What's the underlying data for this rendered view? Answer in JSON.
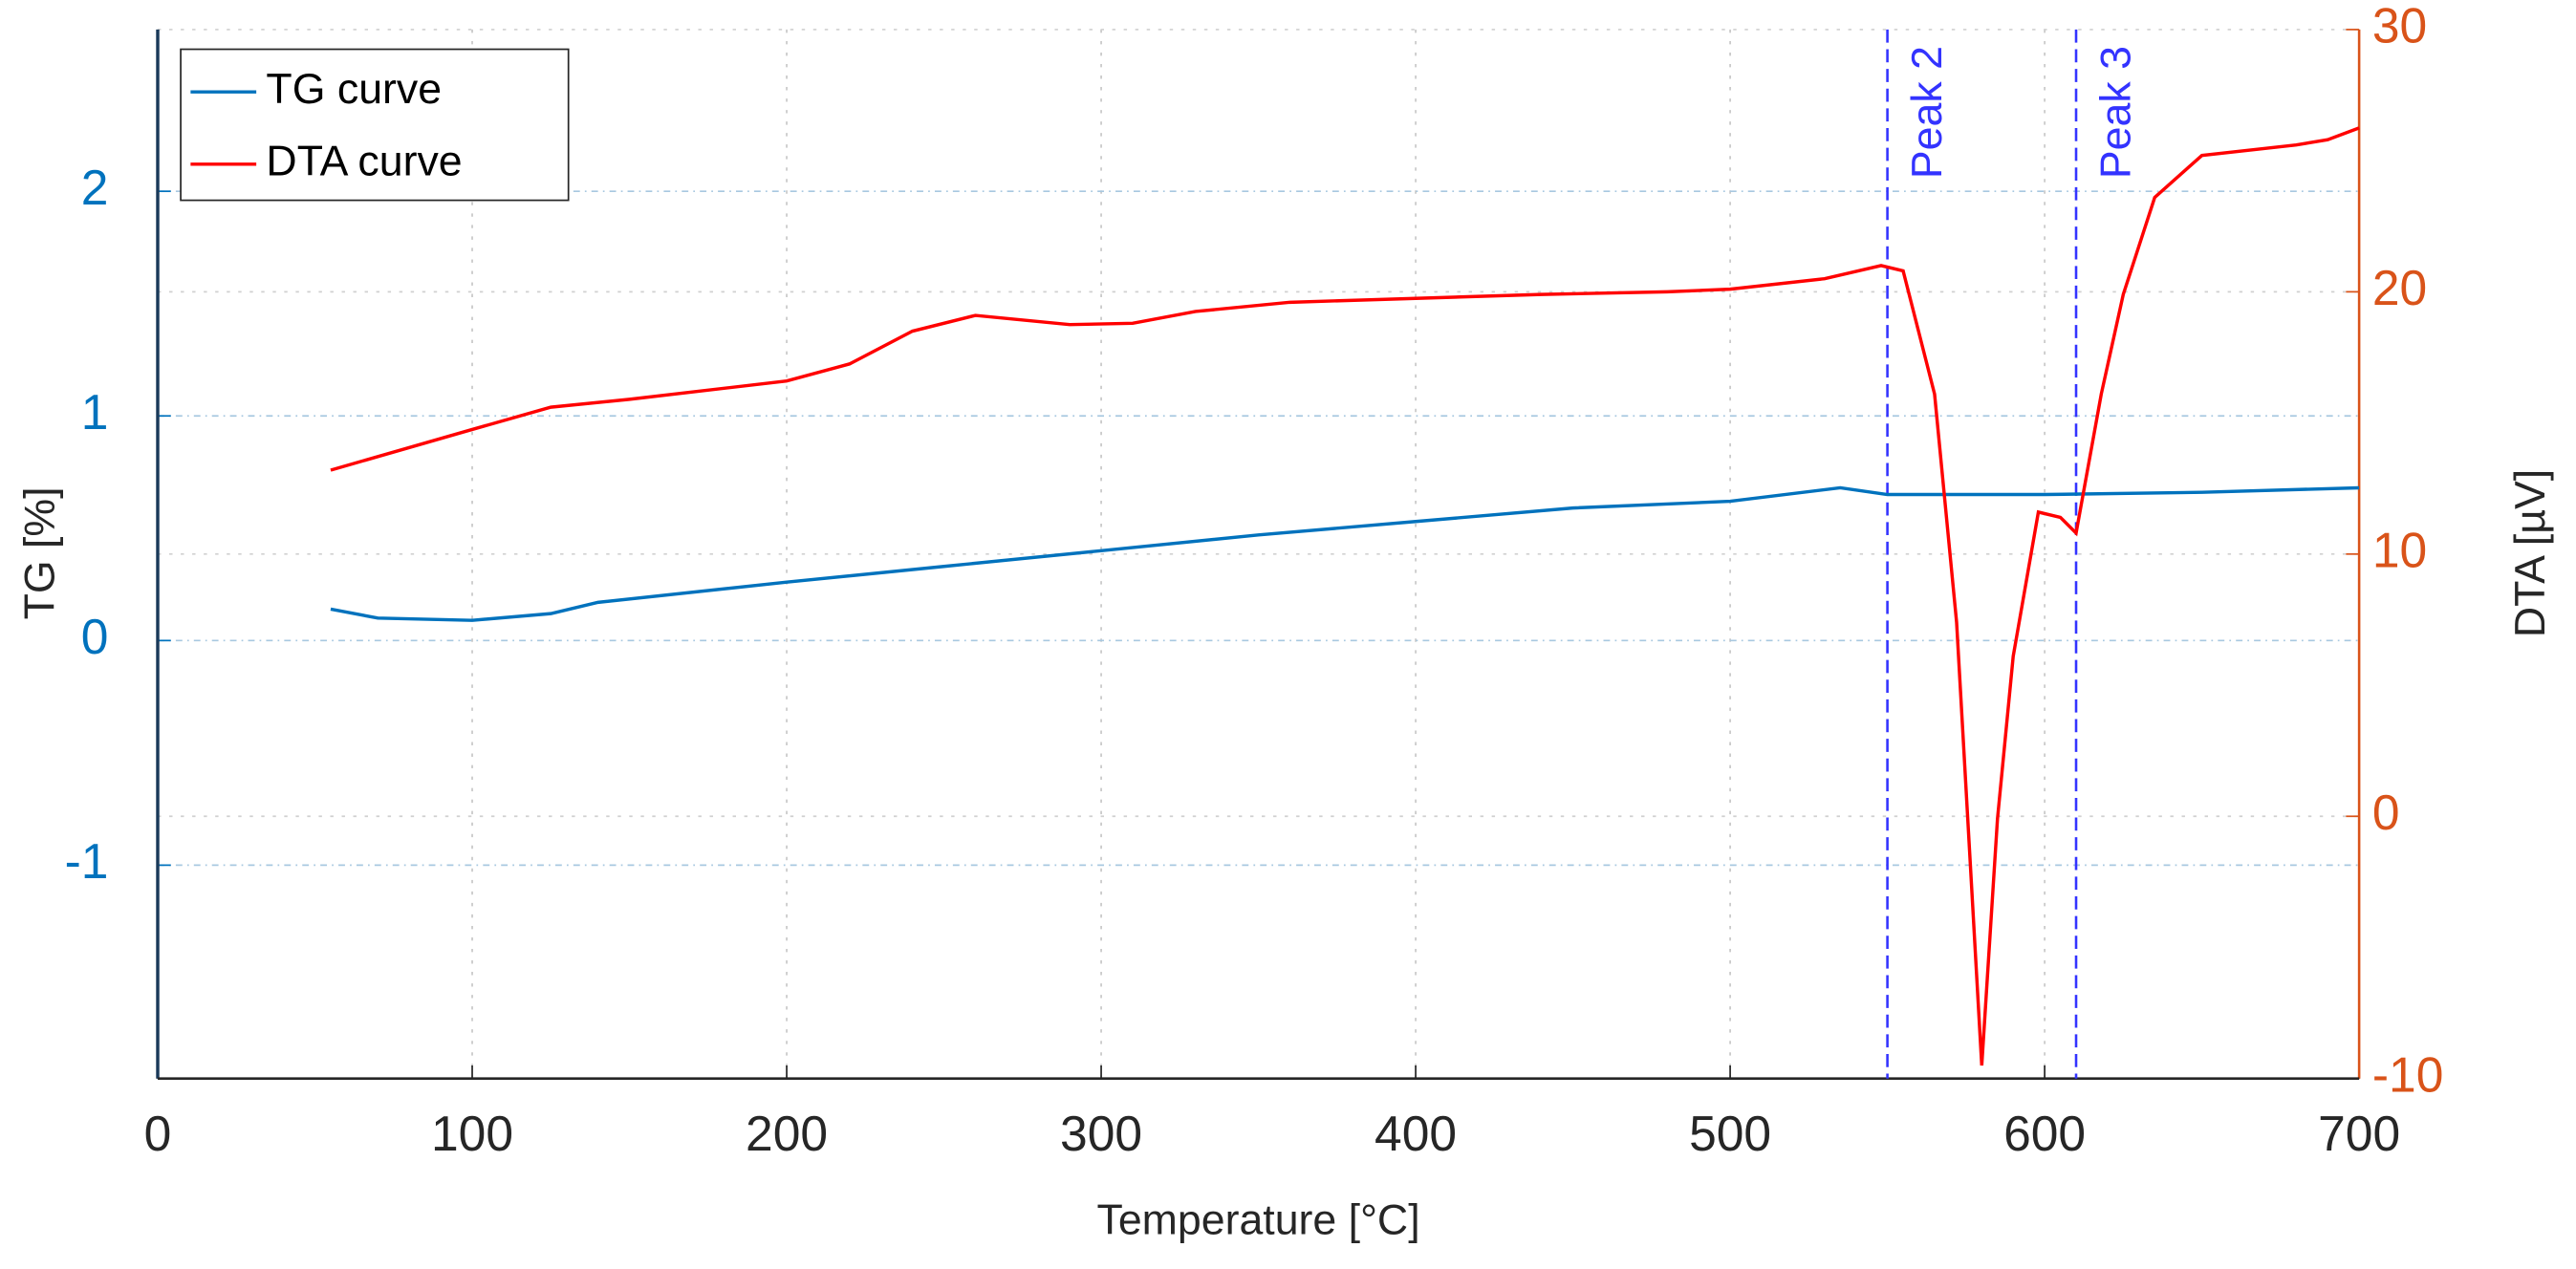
{
  "chart_data": {
    "type": "line",
    "xlabel": "Temperature [°C]",
    "ylabel": "TG [%]",
    "y2label": "DTA [µV]",
    "xlim": [
      0,
      700
    ],
    "xticks": [
      0,
      100,
      200,
      300,
      400,
      500,
      600,
      700
    ],
    "ylim": [
      -1.95,
      2.72
    ],
    "yticks": [
      -1,
      0,
      1,
      2
    ],
    "y2lim": [
      -10,
      30
    ],
    "y2ticks": [
      -10,
      0,
      10,
      20,
      30
    ],
    "grid": true,
    "legend": "upper left",
    "series": [
      {
        "name": "TG curve",
        "color": "#0072bd",
        "x": [
          55,
          70,
          100,
          125,
          140,
          200,
          250,
          300,
          350,
          400,
          450,
          500,
          535,
          550,
          600,
          650,
          700
        ],
        "values": [
          0.14,
          0.1,
          0.09,
          0.12,
          0.17,
          0.26,
          0.33,
          0.4,
          0.47,
          0.53,
          0.59,
          0.62,
          0.68,
          0.65,
          0.65,
          0.66,
          0.68
        ]
      },
      {
        "name": "DTA curve",
        "color": "#ff0000",
        "axis": "y2",
        "x": [
          55,
          100,
          125,
          150,
          200,
          220,
          240,
          260,
          290,
          310,
          330,
          360,
          400,
          440,
          480,
          500,
          530,
          548,
          555,
          565,
          572,
          580,
          585,
          590,
          598,
          605,
          610,
          618,
          625,
          635,
          650,
          680,
          690,
          700
        ],
        "values": [
          13.2,
          14.75,
          15.6,
          15.9,
          16.6,
          17.25,
          18.5,
          19.1,
          18.75,
          18.8,
          19.25,
          19.6,
          19.75,
          19.9,
          20,
          20.1,
          20.5,
          21,
          20.8,
          16.1,
          7.4,
          -9.5,
          -0.1,
          6.1,
          11.6,
          11.4,
          10.8,
          16.1,
          19.9,
          23.6,
          25.2,
          25.6,
          25.8,
          26.25
        ]
      }
    ],
    "annotations": [
      {
        "label": "Peak 2",
        "x": 550,
        "color": "#3333ff"
      },
      {
        "label": "Peak 3",
        "x": 610,
        "color": "#3333ff"
      }
    ]
  }
}
